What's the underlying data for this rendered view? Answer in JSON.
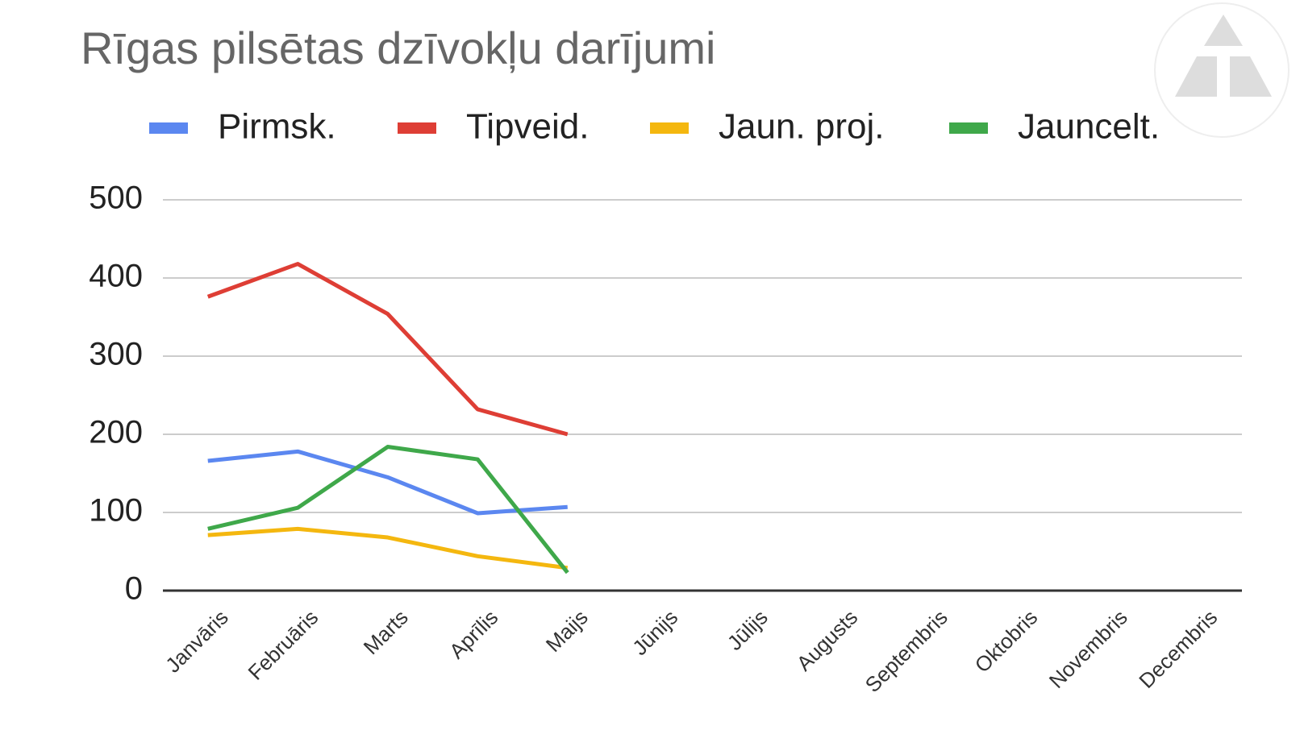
{
  "chart_data": {
    "type": "line",
    "title": "Rīgas pilsētas dzīvokļu darījumi",
    "categories": [
      "Janvāris",
      "Februāris",
      "Marts",
      "Aprīlis",
      "Maijs",
      "Jūnijs",
      "Jūlijs",
      "Augusts",
      "Septembris",
      "Oktobris",
      "Novembris",
      "Decembris"
    ],
    "series": [
      {
        "name": "Pirmsk.",
        "color": "#5b87f0",
        "values": [
          166,
          178,
          145,
          99,
          107,
          null,
          null,
          null,
          null,
          null,
          null,
          null
        ]
      },
      {
        "name": "Tipveid.",
        "color": "#de3e35",
        "values": [
          376,
          418,
          354,
          232,
          200,
          null,
          null,
          null,
          null,
          null,
          null,
          null
        ]
      },
      {
        "name": "Jaun. proj.",
        "color": "#f4b70f",
        "values": [
          71,
          79,
          68,
          44,
          29,
          null,
          null,
          null,
          null,
          null,
          null,
          null
        ]
      },
      {
        "name": "Jauncelt.",
        "color": "#3fa84a",
        "values": [
          79,
          106,
          184,
          168,
          23,
          null,
          null,
          null,
          null,
          null,
          null,
          null
        ]
      }
    ],
    "ylim": [
      0,
      500
    ],
    "yticks": [
      0,
      100,
      200,
      300,
      400,
      500
    ],
    "grid": true,
    "legend": "top"
  }
}
